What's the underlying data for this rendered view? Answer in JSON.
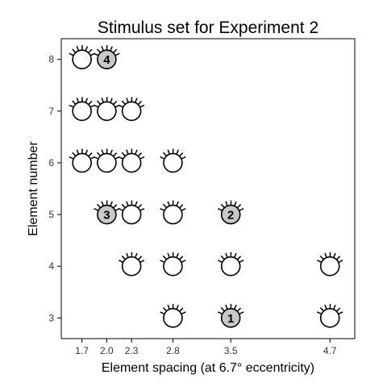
{
  "chart_data": {
    "type": "scatter",
    "title": "Stimulus set for Experiment 2",
    "xlabel": "Element spacing (at 6.7° eccentricity)",
    "ylabel": "Element number",
    "xlim": [
      1.45,
      5.0
    ],
    "ylim": [
      2.6,
      8.4
    ],
    "x_ticks": [
      1.7,
      2.0,
      2.3,
      2.8,
      3.5,
      4.7
    ],
    "x_tick_labels": [
      "1.7",
      "2.0",
      "2.3",
      "2.8",
      "3.5",
      "4.7"
    ],
    "y_ticks": [
      3,
      4,
      5,
      6,
      7,
      8
    ],
    "y_tick_labels": [
      "3",
      "4",
      "5",
      "6",
      "7",
      "8"
    ],
    "marker": "eye-with-lashes",
    "points": [
      {
        "x": 1.7,
        "y": 8
      },
      {
        "x": 2.0,
        "y": 8,
        "label": "4",
        "highlight": true
      },
      {
        "x": 1.7,
        "y": 7
      },
      {
        "x": 2.0,
        "y": 7
      },
      {
        "x": 2.3,
        "y": 7
      },
      {
        "x": 1.7,
        "y": 6
      },
      {
        "x": 2.0,
        "y": 6
      },
      {
        "x": 2.3,
        "y": 6
      },
      {
        "x": 2.8,
        "y": 6
      },
      {
        "x": 2.0,
        "y": 5,
        "label": "3",
        "highlight": true
      },
      {
        "x": 2.3,
        "y": 5
      },
      {
        "x": 2.8,
        "y": 5
      },
      {
        "x": 3.5,
        "y": 5,
        "label": "2",
        "highlight": true
      },
      {
        "x": 2.3,
        "y": 4
      },
      {
        "x": 2.8,
        "y": 4
      },
      {
        "x": 3.5,
        "y": 4
      },
      {
        "x": 4.7,
        "y": 4
      },
      {
        "x": 2.8,
        "y": 3
      },
      {
        "x": 3.5,
        "y": 3,
        "label": "1",
        "highlight": true
      },
      {
        "x": 4.7,
        "y": 3
      }
    ],
    "colors": {
      "highlight_fill": "#c8c8c8",
      "normal_fill": "#ffffff",
      "stroke": "#000000"
    }
  }
}
